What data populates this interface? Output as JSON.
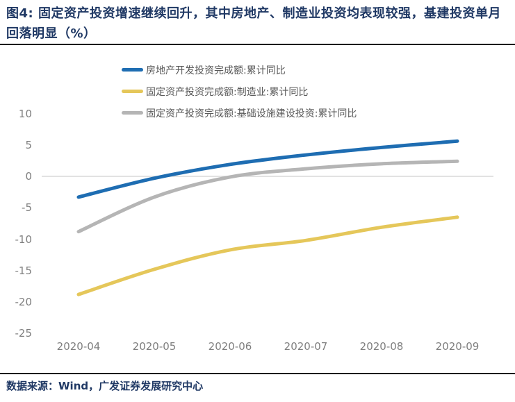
{
  "figure": {
    "title": "图4:  固定资产投资增速继续回升，其中房地产、制造业投资均表现较强，基建投资单月回落明显（%）",
    "source": "数据来源：Wind，广发证券发展研究中心"
  },
  "colors": {
    "title_navy": "#1F3864",
    "axis_text_gray": "#7F7F7F",
    "legend_text_gray": "#595959",
    "zero_line_gray": "#D9D9D9",
    "divider_black": "#000000",
    "series_blue": "#1E6DB2",
    "series_yellow": "#E5C75A",
    "series_gray": "#B5B5B5"
  },
  "chart_data": {
    "type": "line",
    "categories": [
      "2020-04",
      "2020-05",
      "2020-06",
      "2020-07",
      "2020-08",
      "2020-09"
    ],
    "series": [
      {
        "name": "房地产开发投资完成额:累计同比",
        "color": "#1E6DB2",
        "values": [
          -3.3,
          -0.3,
          1.9,
          3.4,
          4.6,
          5.6
        ]
      },
      {
        "name": "固定资产投资完成额:制造业:累计同比",
        "color": "#E5C75A",
        "values": [
          -18.8,
          -14.8,
          -11.7,
          -10.2,
          -8.1,
          -6.5
        ]
      },
      {
        "name": "固定资产投资完成额:基础设施建设投资:累计同比",
        "color": "#B5B5B5",
        "values": [
          -8.8,
          -3.3,
          -0.1,
          1.2,
          2.0,
          2.4
        ]
      }
    ],
    "title": "",
    "xlabel": "",
    "ylabel": "",
    "ylim": [
      -25,
      10
    ],
    "yticks": [
      10,
      5,
      0,
      -5,
      -10,
      -15,
      -20,
      -25
    ],
    "grid": "zero-line-only",
    "legend_position": "top-left"
  }
}
